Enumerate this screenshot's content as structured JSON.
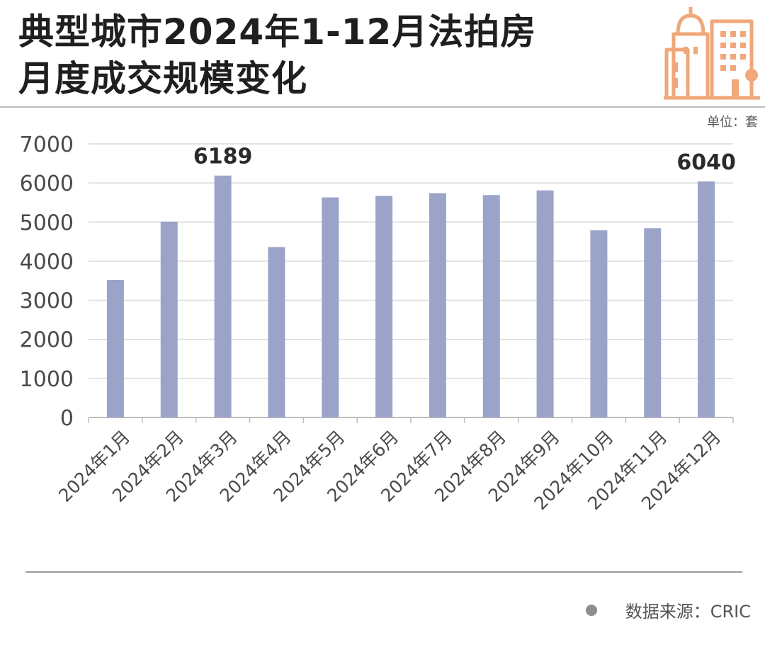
{
  "header": {
    "title_line1": "典型城市2024年1-12月法拍房",
    "title_line2": "月度成交规模变化",
    "unit_label": "单位：套"
  },
  "footer": {
    "source_label": "数据来源：CRIC"
  },
  "colors": {
    "bar": "#9ba4c8",
    "logo": "#f0a77a",
    "grid": "#d9d9d9"
  },
  "chart_data": {
    "type": "bar",
    "categories": [
      "2024年1月",
      "2024年2月",
      "2024年3月",
      "2024年4月",
      "2024年5月",
      "2024年6月",
      "2024年7月",
      "2024年8月",
      "2024年9月",
      "2024年10月",
      "2024年11月",
      "2024年12月"
    ],
    "values": [
      3520,
      5010,
      6189,
      4360,
      5630,
      5670,
      5740,
      5690,
      5810,
      4790,
      4840,
      6040
    ],
    "data_labels": [
      {
        "index": 2,
        "text": "6189"
      },
      {
        "index": 11,
        "text": "6040"
      }
    ],
    "yticks": [
      "0",
      "1000",
      "2000",
      "3000",
      "4000",
      "5000",
      "6000",
      "7000"
    ],
    "ylim": [
      0,
      7000
    ],
    "grid": true,
    "legend": "none"
  }
}
